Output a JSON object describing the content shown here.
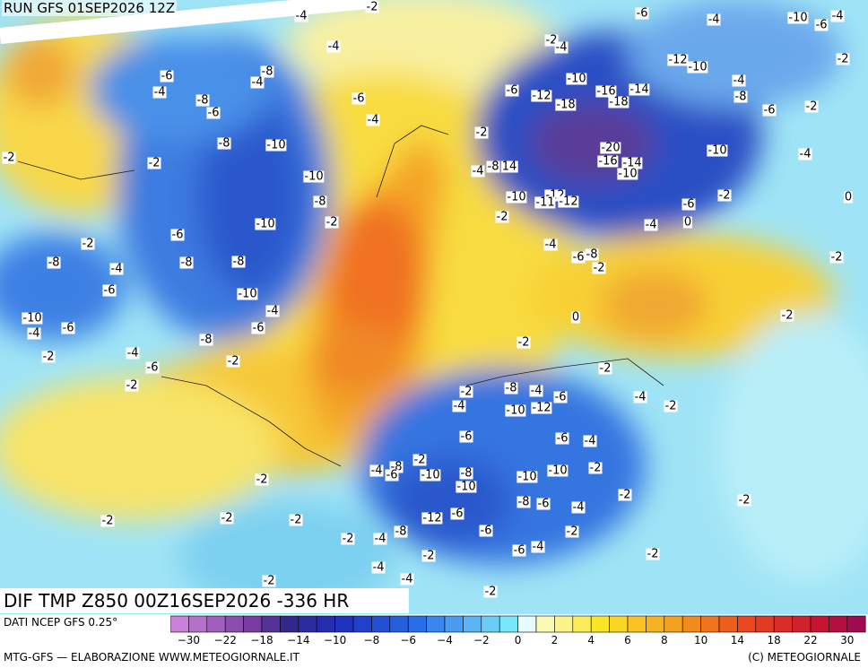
{
  "header": {
    "run": "RUN GFS 01SEP2026 12Z"
  },
  "map": {
    "labels": [
      "-4",
      "-2",
      "-6",
      "-4",
      "-10",
      "-6",
      "-4",
      "-2",
      "-4",
      "-4",
      "-2",
      "-12",
      "-10",
      "-6",
      "-4",
      "-8",
      "-4",
      "-10",
      "-4",
      "-6",
      "-12",
      "-16",
      "-14",
      "-8",
      "-8",
      "-6",
      "-6",
      "-18",
      "-18",
      "-6",
      "-2",
      "-4",
      "-2",
      "-8",
      "-10",
      "-20",
      "-10",
      "-2",
      "-16",
      "-14",
      "-4",
      "-2",
      "-8",
      "14",
      "-4",
      "-10",
      "-10",
      "-8",
      "-10",
      "-12",
      "-11",
      "-12",
      "-6",
      "-2",
      "0",
      "-2",
      "-10",
      "-2",
      "-4",
      "0",
      "-6",
      "-2",
      "-4",
      "-8",
      "-6",
      "-2",
      "-8",
      "-4",
      "-8",
      "-8",
      "-2",
      "-6",
      "-10",
      "-10",
      "-4",
      "-2",
      "0",
      "-6",
      "-4",
      "-6",
      "-8",
      "-2",
      "-4",
      "-2",
      "-2",
      "-6",
      "-2",
      "-2",
      "-2",
      "-8",
      "-4",
      "-6",
      "-4",
      "-2",
      "-4",
      "-10",
      "-12",
      "-6",
      "-6",
      "-4",
      "-2",
      "-4",
      "-8",
      "-6",
      "-10",
      "-8",
      "-10",
      "-10",
      "-10",
      "-2",
      "-2",
      "-2",
      "-2",
      "-8",
      "-6",
      "-4",
      "-2",
      "-2",
      "-12",
      "-6",
      "-2",
      "-6",
      "-2",
      "-8",
      "-4",
      "-2",
      "-2",
      "-6",
      "-4",
      "-2",
      "-4",
      "-4",
      "-2",
      "-2"
    ]
  },
  "footer": {
    "title": "DIF TMP Z850 00Z16SEP2026 -336 HR",
    "source": "DATI NCEP GFS 0.25°",
    "credit": "MTG-GFS — ELABORAZIONE WWW.METEOGIORNALE.IT",
    "copyright": "(C) METEOGIORNALE"
  },
  "legend": {
    "ticks": [
      "−30",
      "−22",
      "−18",
      "−14",
      "−10",
      "−8",
      "−6",
      "−4",
      "−2",
      "0",
      "2",
      "4",
      "6",
      "8",
      "10",
      "14",
      "18",
      "22",
      "30"
    ]
  }
}
